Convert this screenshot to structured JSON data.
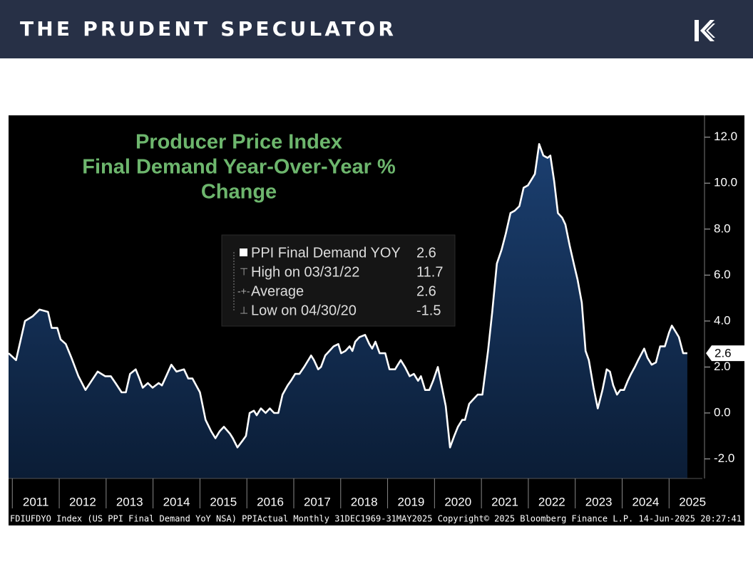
{
  "header": {
    "brand": "THE PRUDENT SPECULATOR"
  },
  "chart_data": {
    "type": "line",
    "title": [
      "Producer Price Index",
      "Final Demand Year-Over-Year %",
      "Change"
    ],
    "series": [
      {
        "name": "PPI Final Demand YOY",
        "color": "#ffffff",
        "x": [
          2010.92,
          2011.08,
          2011.27,
          2011.43,
          2011.58,
          2011.76,
          2011.84,
          2011.96,
          2012.03,
          2012.14,
          2012.26,
          2012.41,
          2012.56,
          2012.69,
          2012.82,
          2012.98,
          2013.1,
          2013.2,
          2013.33,
          2013.42,
          2013.51,
          2013.63,
          2013.71,
          2013.78,
          2013.89,
          2013.99,
          2014.12,
          2014.19,
          2014.28,
          2014.39,
          2014.5,
          2014.66,
          2014.75,
          2014.84,
          2015.0,
          2015.12,
          2015.24,
          2015.33,
          2015.42,
          2015.51,
          2015.64,
          2015.7,
          2015.8,
          2015.91,
          2015.98,
          2016.06,
          2016.15,
          2016.21,
          2016.3,
          2016.4,
          2016.49,
          2016.58,
          2016.67,
          2016.76,
          2016.87,
          2016.94,
          2017.03,
          2017.12,
          2017.22,
          2017.28,
          2017.37,
          2017.43,
          2017.52,
          2017.58,
          2017.67,
          2017.76,
          2017.85,
          2017.95,
          2018.01,
          2018.1,
          2018.19,
          2018.25,
          2018.31,
          2018.4,
          2018.52,
          2018.61,
          2018.67,
          2018.74,
          2018.83,
          2018.95,
          2019.04,
          2019.16,
          2019.22,
          2019.28,
          2019.37,
          2019.47,
          2019.56,
          2019.65,
          2019.71,
          2019.8,
          2019.89,
          2019.97,
          2020.07,
          2020.16,
          2020.24,
          2020.33,
          2020.42,
          2020.5,
          2020.59,
          2020.65,
          2020.74,
          2020.83,
          2020.92,
          2021.02,
          2021.14,
          2021.23,
          2021.33,
          2021.43,
          2021.52,
          2021.62,
          2021.71,
          2021.81,
          2021.9,
          2021.99,
          2022.08,
          2022.14,
          2022.23,
          2022.32,
          2022.41,
          2022.47,
          2022.55,
          2022.63,
          2022.72,
          2022.79,
          2022.88,
          2022.98,
          2023.05,
          2023.14,
          2023.22,
          2023.29,
          2023.39,
          2023.48,
          2023.58,
          2023.67,
          2023.74,
          2023.81,
          2023.89,
          2023.96,
          2024.04,
          2024.12,
          2024.19,
          2024.27,
          2024.34,
          2024.47,
          2024.54,
          2024.63,
          2024.72,
          2024.81,
          2024.91,
          2025.0,
          2025.06,
          2025.15,
          2025.21,
          2025.3,
          2025.39
        ],
        "values": [
          2.6,
          2.3,
          4.0,
          4.2,
          4.5,
          4.4,
          3.7,
          3.7,
          3.2,
          3.0,
          2.4,
          1.6,
          1.0,
          1.4,
          1.8,
          1.6,
          1.6,
          1.3,
          0.9,
          0.9,
          1.7,
          1.9,
          1.5,
          1.1,
          1.3,
          1.1,
          1.3,
          1.2,
          1.6,
          2.1,
          1.8,
          1.9,
          1.5,
          1.5,
          0.9,
          -0.3,
          -0.8,
          -1.1,
          -0.8,
          -0.6,
          -0.9,
          -1.1,
          -1.5,
          -1.2,
          -1.0,
          0.0,
          0.1,
          -0.1,
          0.2,
          0.0,
          0.2,
          0.0,
          0.0,
          0.8,
          1.2,
          1.4,
          1.7,
          1.7,
          2.0,
          2.2,
          2.5,
          2.3,
          1.9,
          2.0,
          2.5,
          2.7,
          2.9,
          3.0,
          2.6,
          2.7,
          2.9,
          2.7,
          3.1,
          3.3,
          3.4,
          3.0,
          2.8,
          3.1,
          2.6,
          2.6,
          1.9,
          1.9,
          2.1,
          2.3,
          2.0,
          1.6,
          1.7,
          1.4,
          1.6,
          1.0,
          1.0,
          1.4,
          2.0,
          1.1,
          0.3,
          -1.5,
          -1.0,
          -0.6,
          -0.3,
          -0.3,
          0.4,
          0.6,
          0.8,
          0.8,
          2.7,
          4.4,
          6.5,
          7.1,
          7.8,
          8.7,
          8.8,
          9.0,
          9.8,
          9.9,
          10.2,
          10.4,
          11.7,
          11.2,
          11.1,
          11.2,
          10.1,
          8.7,
          8.5,
          8.2,
          7.3,
          6.4,
          5.8,
          4.8,
          2.7,
          2.3,
          1.1,
          0.2,
          1.0,
          1.9,
          1.8,
          1.2,
          0.8,
          1.0,
          1.0,
          1.4,
          1.7,
          2.0,
          2.3,
          2.8,
          2.4,
          2.1,
          2.2,
          2.9,
          2.9,
          3.5,
          3.8,
          3.5,
          3.3,
          2.6,
          2.6
        ]
      }
    ],
    "legend_stats": [
      {
        "label": "High on 03/31/22",
        "value": 11.7
      },
      {
        "label": "Average",
        "value": 2.6
      },
      {
        "label": "Low on 04/30/20",
        "value": -1.5
      }
    ],
    "xlim": [
      2010.92,
      2025.71
    ],
    "xticks": [
      {
        "value": 2011,
        "label": "2011"
      },
      {
        "value": 2012,
        "label": "2012"
      },
      {
        "value": 2013,
        "label": "2013"
      },
      {
        "value": 2014,
        "label": "2014"
      },
      {
        "value": 2015,
        "label": "2015"
      },
      {
        "value": 2016,
        "label": "2016"
      },
      {
        "value": 2017,
        "label": "2017"
      },
      {
        "value": 2018,
        "label": "2018"
      },
      {
        "value": 2019,
        "label": "2019"
      },
      {
        "value": 2020,
        "label": "2020"
      },
      {
        "value": 2021,
        "label": "2021"
      },
      {
        "value": 2022,
        "label": "2022"
      },
      {
        "value": 2023,
        "label": "2023"
      },
      {
        "value": 2024,
        "label": "2024"
      },
      {
        "value": 2025,
        "label": "2025"
      }
    ],
    "ylim": [
      -2.85,
      12.95
    ],
    "yticks": [
      {
        "value": 12,
        "label": "12.0"
      },
      {
        "value": 10,
        "label": "10.0"
      },
      {
        "value": 8,
        "label": "8.0"
      },
      {
        "value": 6,
        "label": "6.0"
      },
      {
        "value": 4,
        "label": "4.0"
      },
      {
        "value": 2,
        "label": "2.0"
      },
      {
        "value": 0,
        "label": "0.0"
      },
      {
        "value": -2,
        "label": "-2.0"
      }
    ],
    "source": "FDIUFDYO Index (US PPI Final Demand YoY NSA) PPIActual  Monthly 31DEC1969-31MAY2025 Copyright© 2025 Bloomberg Finance L.P.  14-Jun-2025 20:27:41"
  }
}
